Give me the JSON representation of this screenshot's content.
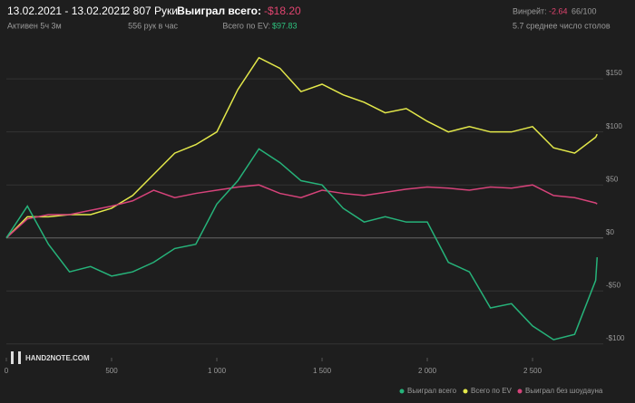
{
  "header": {
    "dates": "13.02.2021 - 13.02.2021",
    "active": "Активен 5ч 3м",
    "hands": "2 807 Руки",
    "hands_per_hour": "556 рук в час",
    "won_label": "Выиграл всего:",
    "won_value": "-$18.20",
    "ev_label": "Всего по EV:",
    "ev_value": "$97.83",
    "winrate_label": "Винрейт:",
    "winrate_value": "-2.64",
    "winrate_unit": "66/100",
    "tables": "5.7 среднее число столов",
    "logo": "HAND2NOTE.COM"
  },
  "chart_data": {
    "type": "line",
    "x": [
      0,
      100,
      200,
      300,
      400,
      500,
      600,
      700,
      800,
      900,
      1000,
      1100,
      1200,
      1300,
      1400,
      1500,
      1600,
      1700,
      1800,
      1900,
      2000,
      2100,
      2200,
      2300,
      2400,
      2500,
      2600,
      2700,
      2800,
      2807
    ],
    "series": [
      {
        "name": "Выиграл всего",
        "color": "#26b37a",
        "values": [
          0,
          30,
          -6,
          -32,
          -27,
          -36,
          -32,
          -23,
          -10,
          -6,
          32,
          54,
          84,
          71,
          54,
          50,
          28,
          15,
          20,
          15,
          15,
          -23,
          -32,
          -66,
          -62,
          -83,
          -96,
          -91,
          -40,
          -18.2
        ]
      },
      {
        "name": "Всего по EV",
        "color": "#e3e84a",
        "values": [
          0,
          20,
          20,
          22,
          22,
          28,
          40,
          60,
          80,
          88,
          100,
          140,
          170,
          160,
          138,
          145,
          135,
          128,
          118,
          122,
          110,
          100,
          105,
          100,
          100,
          105,
          85,
          80,
          95,
          97.83
        ]
      },
      {
        "name": "Выиграл без шоудауна",
        "color": "#d6437a",
        "values": [
          0,
          18,
          22,
          22,
          26,
          30,
          35,
          45,
          38,
          42,
          45,
          48,
          50,
          42,
          38,
          45,
          42,
          40,
          43,
          46,
          48,
          47,
          45,
          48,
          47,
          50,
          40,
          38,
          33,
          32
        ]
      }
    ],
    "xlim": [
      0,
      2836
    ],
    "ylim": [
      -113,
      186
    ],
    "xticks": [
      0,
      500,
      {
        "value": 1000,
        "label": "1 000"
      },
      {
        "value": 1500,
        "label": "1 500"
      },
      {
        "value": 2000,
        "label": "2 000"
      },
      {
        "value": 2500,
        "label": "2 500"
      }
    ],
    "yticks": [
      {
        "value": -100,
        "label": "-$100"
      },
      {
        "value": -50,
        "label": "-$50"
      },
      {
        "value": 0,
        "label": "$0"
      },
      {
        "value": 50,
        "label": "$50"
      },
      {
        "value": 100,
        "label": "$100"
      },
      {
        "value": 150,
        "label": "$150"
      }
    ],
    "grid": true
  }
}
